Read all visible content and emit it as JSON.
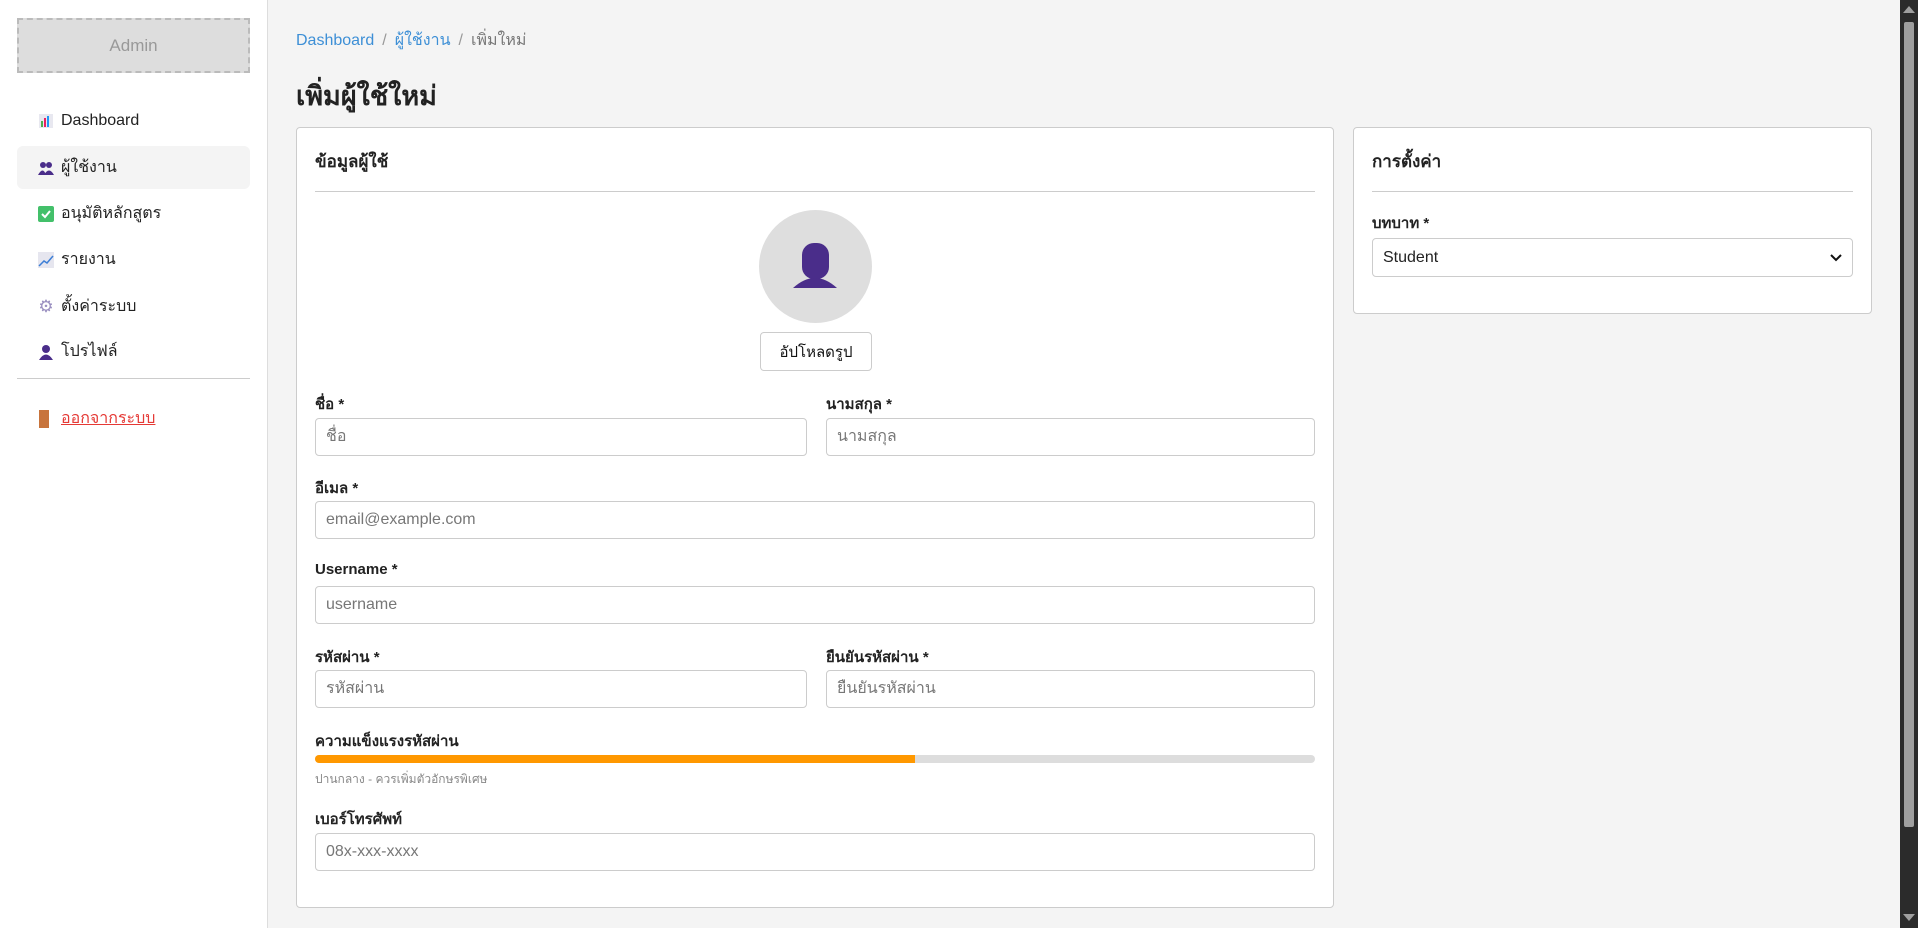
{
  "sidebar": {
    "logo": "Admin",
    "items": [
      {
        "label": "Dashboard",
        "icon": "bar-chart-icon",
        "active": false
      },
      {
        "label": "ผู้ใช้งาน",
        "icon": "users-icon",
        "active": true
      },
      {
        "label": "อนุมัติหลักสูตร",
        "icon": "check-box-icon",
        "active": false
      },
      {
        "label": "รายงาน",
        "icon": "line-chart-icon",
        "active": false
      },
      {
        "label": "ตั้งค่าระบบ",
        "icon": "gear-icon",
        "active": false
      },
      {
        "label": "โปรไฟล์",
        "icon": "user-icon",
        "active": false
      }
    ],
    "logout": "ออกจากระบบ"
  },
  "breadcrumb": [
    "Dashboard",
    "ผู้ใช้งาน",
    "เพิ่มใหม่"
  ],
  "page_title": "เพิ่มผู้ใช้ใหม่",
  "user_card": {
    "title": "ข้อมูลผู้ใช้",
    "upload_label": "อัปโหลดรูป",
    "first_name": {
      "label": "ชื่อ *",
      "placeholder": "ชื่อ"
    },
    "last_name": {
      "label": "นามสกุล *",
      "placeholder": "นามสกุล"
    },
    "email": {
      "label": "อีเมล *",
      "placeholder": "email@example.com"
    },
    "username": {
      "label": "Username *",
      "placeholder": "username"
    },
    "password": {
      "label": "รหัสผ่าน *",
      "placeholder": "รหัสผ่าน"
    },
    "confirm_password": {
      "label": "ยืนยันรหัสผ่าน *",
      "placeholder": "ยืนยันรหัสผ่าน"
    },
    "strength": {
      "label": "ความแข็งแรงรหัสผ่าน",
      "percent": 60,
      "color": "#ff9800",
      "hint": "ปานกลาง - ควรเพิ่มตัวอักษรพิเศษ"
    },
    "phone": {
      "label": "เบอร์โทรศัพท์",
      "placeholder": "08x-xxx-xxxx"
    }
  },
  "settings_card": {
    "title": "การตั้งค่า",
    "role_label": "บทบาท *",
    "role_value": "Student"
  },
  "colors": {
    "link": "#3d8fd6",
    "logout": "#e53935",
    "avatar_icon": "#4a2d8a"
  }
}
